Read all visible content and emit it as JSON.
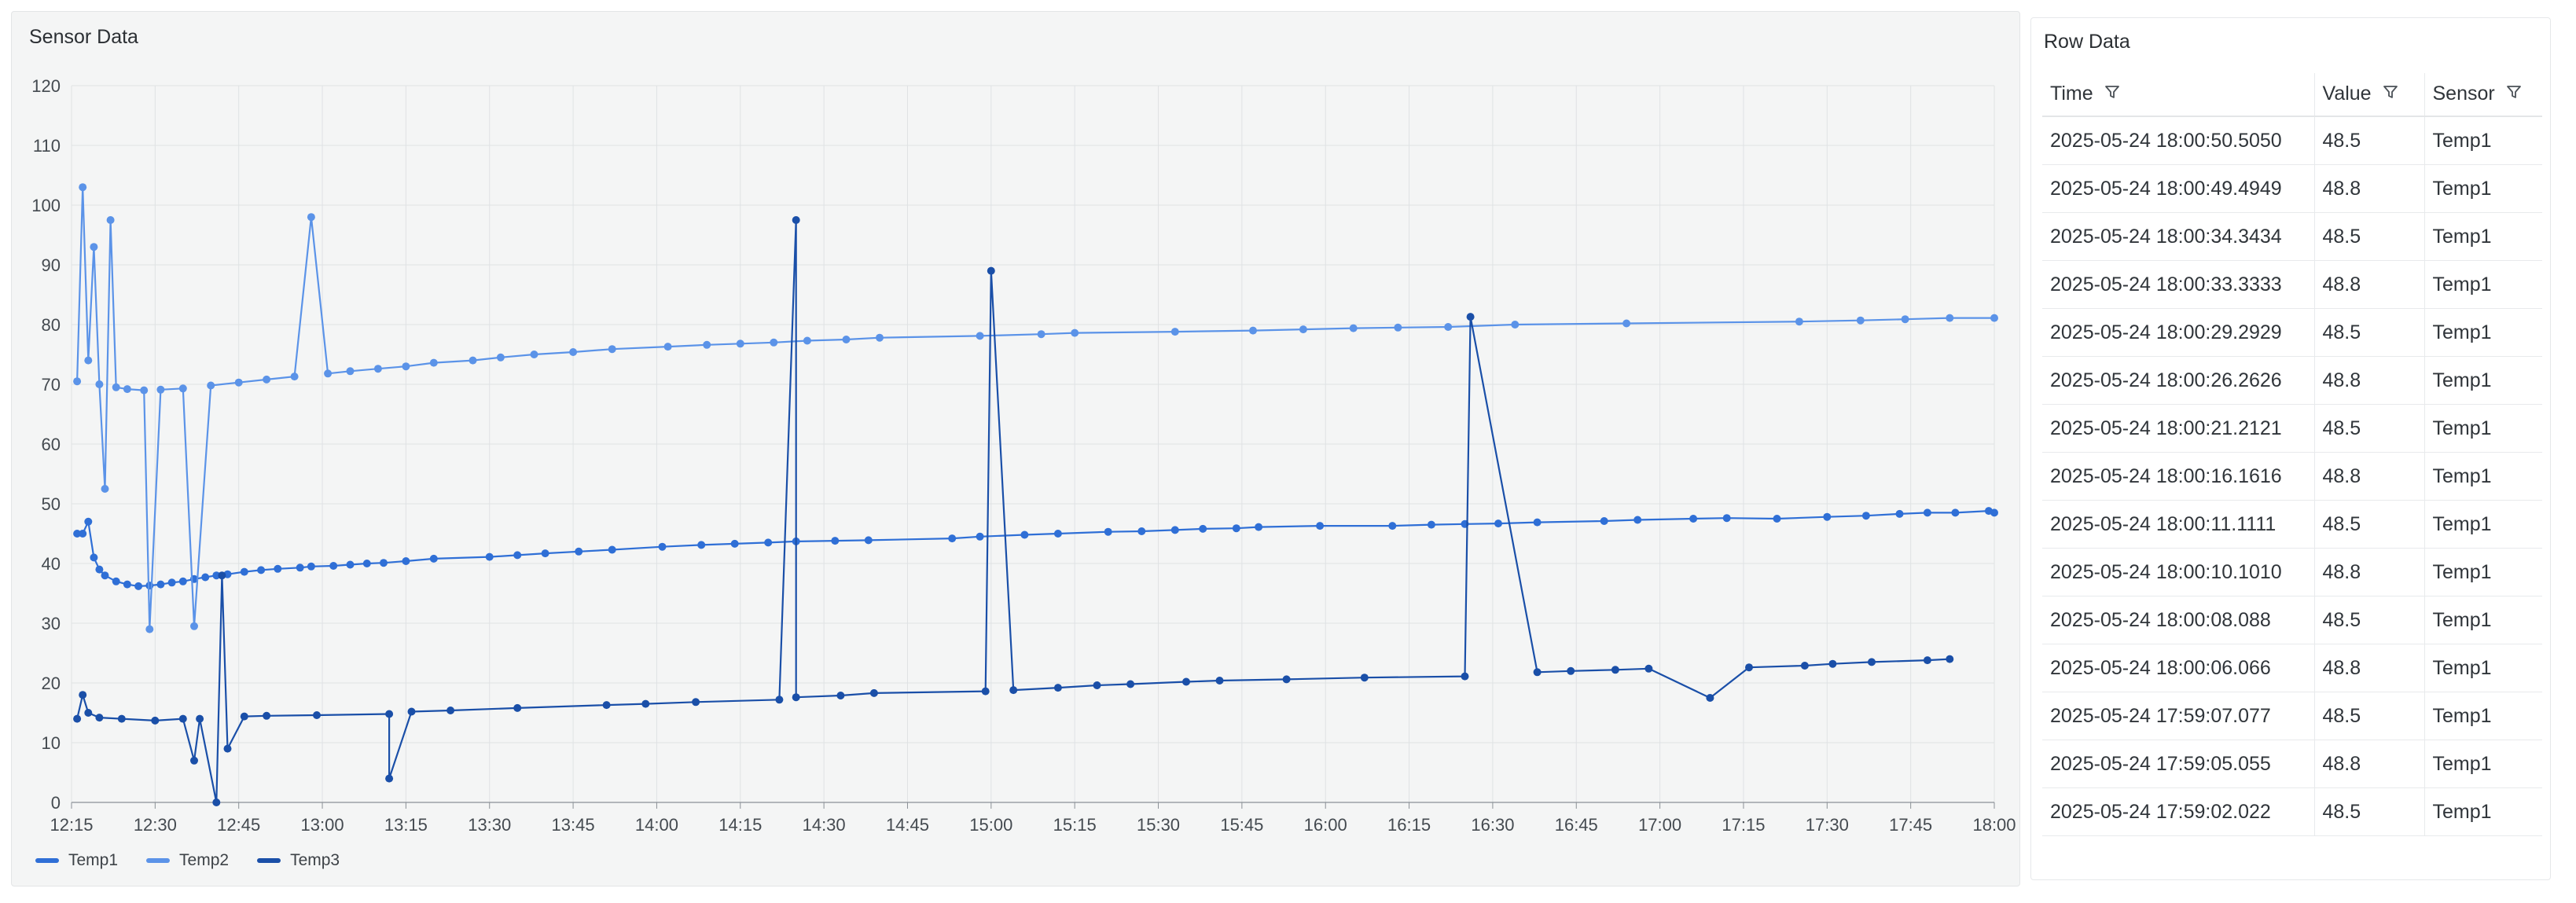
{
  "chart": {
    "title": "Sensor Data"
  },
  "table": {
    "title": "Row Data",
    "columns": [
      "Time",
      "Value",
      "Sensor"
    ],
    "rows": [
      [
        "2025-05-24 18:00:50.5050",
        "48.5",
        "Temp1"
      ],
      [
        "2025-05-24 18:00:49.4949",
        "48.8",
        "Temp1"
      ],
      [
        "2025-05-24 18:00:34.3434",
        "48.5",
        "Temp1"
      ],
      [
        "2025-05-24 18:00:33.3333",
        "48.8",
        "Temp1"
      ],
      [
        "2025-05-24 18:00:29.2929",
        "48.5",
        "Temp1"
      ],
      [
        "2025-05-24 18:00:26.2626",
        "48.8",
        "Temp1"
      ],
      [
        "2025-05-24 18:00:21.2121",
        "48.5",
        "Temp1"
      ],
      [
        "2025-05-24 18:00:16.1616",
        "48.8",
        "Temp1"
      ],
      [
        "2025-05-24 18:00:11.1111",
        "48.5",
        "Temp1"
      ],
      [
        "2025-05-24 18:00:10.1010",
        "48.8",
        "Temp1"
      ],
      [
        "2025-05-24 18:00:08.088",
        "48.5",
        "Temp1"
      ],
      [
        "2025-05-24 18:00:06.066",
        "48.8",
        "Temp1"
      ],
      [
        "2025-05-24 17:59:07.077",
        "48.5",
        "Temp1"
      ],
      [
        "2025-05-24 17:59:05.055",
        "48.8",
        "Temp1"
      ],
      [
        "2025-05-24 17:59:02.022",
        "48.5",
        "Temp1"
      ]
    ]
  },
  "icons": {
    "filter": "filter-icon"
  },
  "chart_data": {
    "type": "line",
    "title": "Sensor Data",
    "xlabel": "",
    "ylabel": "",
    "x_ticks": [
      "12:15",
      "12:30",
      "12:45",
      "13:00",
      "13:15",
      "13:30",
      "13:45",
      "14:00",
      "14:15",
      "14:30",
      "14:45",
      "15:00",
      "15:15",
      "15:30",
      "15:45",
      "16:00",
      "16:15",
      "16:30",
      "16:45",
      "17:00",
      "17:15",
      "17:30",
      "17:45",
      "18:00"
    ],
    "xlim": [
      "12:15",
      "18:00"
    ],
    "y_ticks": [
      0,
      10,
      20,
      30,
      40,
      50,
      60,
      70,
      80,
      90,
      100,
      110,
      120
    ],
    "ylim": [
      0,
      120
    ],
    "grid": true,
    "legend": "bottom-left",
    "series": [
      {
        "name": "Temp1",
        "color": "#2f6fd6",
        "points": [
          [
            "12:16",
            45
          ],
          [
            "12:17",
            45
          ],
          [
            "12:18",
            47
          ],
          [
            "12:19",
            41
          ],
          [
            "12:20",
            39
          ],
          [
            "12:21",
            38
          ],
          [
            "12:23",
            37
          ],
          [
            "12:25",
            36.5
          ],
          [
            "12:27",
            36.2
          ],
          [
            "12:29",
            36.3
          ],
          [
            "12:31",
            36.5
          ],
          [
            "12:33",
            36.8
          ],
          [
            "12:35",
            37
          ],
          [
            "12:37",
            37.4
          ],
          [
            "12:39",
            37.7
          ],
          [
            "12:41",
            38
          ],
          [
            "12:43",
            38.2
          ],
          [
            "12:46",
            38.6
          ],
          [
            "12:49",
            38.9
          ],
          [
            "12:52",
            39.1
          ],
          [
            "12:56",
            39.3
          ],
          [
            "12:58",
            39.5
          ],
          [
            "13:02",
            39.6
          ],
          [
            "13:05",
            39.8
          ],
          [
            "13:08",
            40
          ],
          [
            "13:11",
            40.1
          ],
          [
            "13:15",
            40.4
          ],
          [
            "13:20",
            40.8
          ],
          [
            "13:30",
            41.1
          ],
          [
            "13:35",
            41.4
          ],
          [
            "13:40",
            41.7
          ],
          [
            "13:46",
            42
          ],
          [
            "13:52",
            42.3
          ],
          [
            "14:01",
            42.8
          ],
          [
            "14:08",
            43.1
          ],
          [
            "14:14",
            43.3
          ],
          [
            "14:20",
            43.5
          ],
          [
            "14:25",
            43.7
          ],
          [
            "14:32",
            43.8
          ],
          [
            "14:38",
            43.9
          ],
          [
            "14:53",
            44.2
          ],
          [
            "14:58",
            44.5
          ],
          [
            "15:06",
            44.8
          ],
          [
            "15:12",
            45
          ],
          [
            "15:21",
            45.3
          ],
          [
            "15:27",
            45.4
          ],
          [
            "15:33",
            45.6
          ],
          [
            "15:38",
            45.8
          ],
          [
            "15:44",
            45.9
          ],
          [
            "15:48",
            46.1
          ],
          [
            "15:59",
            46.3
          ],
          [
            "16:12",
            46.3
          ],
          [
            "16:19",
            46.5
          ],
          [
            "16:25",
            46.6
          ],
          [
            "16:31",
            46.7
          ],
          [
            "16:38",
            46.9
          ],
          [
            "16:50",
            47.1
          ],
          [
            "16:56",
            47.3
          ],
          [
            "17:06",
            47.5
          ],
          [
            "17:12",
            47.6
          ],
          [
            "17:21",
            47.5
          ],
          [
            "17:30",
            47.8
          ],
          [
            "17:37",
            48
          ],
          [
            "17:43",
            48.3
          ],
          [
            "17:48",
            48.5
          ],
          [
            "17:53",
            48.5
          ],
          [
            "17:59",
            48.8
          ],
          [
            "18:00",
            48.5
          ]
        ]
      },
      {
        "name": "Temp2",
        "color": "#5b93e8",
        "points": [
          [
            "12:16",
            70.5
          ],
          [
            "12:17",
            103
          ],
          [
            "12:18",
            74
          ],
          [
            "12:19",
            93
          ],
          [
            "12:20",
            70
          ],
          [
            "12:21",
            52.5
          ],
          [
            "12:22",
            97.5
          ],
          [
            "12:23",
            69.5
          ],
          [
            "12:25",
            69.2
          ],
          [
            "12:28",
            69
          ],
          [
            "12:29",
            29
          ],
          [
            "12:31",
            69.1
          ],
          [
            "12:35",
            69.3
          ],
          [
            "12:37",
            29.5
          ],
          [
            "12:40",
            69.8
          ],
          [
            "12:45",
            70.3
          ],
          [
            "12:50",
            70.8
          ],
          [
            "12:55",
            71.3
          ],
          [
            "12:58",
            98
          ],
          [
            "13:01",
            71.8
          ],
          [
            "13:05",
            72.2
          ],
          [
            "13:10",
            72.6
          ],
          [
            "13:15",
            73
          ],
          [
            "13:20",
            73.6
          ],
          [
            "13:27",
            74
          ],
          [
            "13:32",
            74.5
          ],
          [
            "13:38",
            75
          ],
          [
            "13:45",
            75.4
          ],
          [
            "13:52",
            75.9
          ],
          [
            "14:02",
            76.3
          ],
          [
            "14:09",
            76.6
          ],
          [
            "14:15",
            76.8
          ],
          [
            "14:21",
            77
          ],
          [
            "14:27",
            77.3
          ],
          [
            "14:34",
            77.5
          ],
          [
            "14:40",
            77.8
          ],
          [
            "14:58",
            78.1
          ],
          [
            "15:09",
            78.4
          ],
          [
            "15:15",
            78.6
          ],
          [
            "15:33",
            78.8
          ],
          [
            "15:47",
            79
          ],
          [
            "15:56",
            79.2
          ],
          [
            "16:05",
            79.4
          ],
          [
            "16:13",
            79.5
          ],
          [
            "16:22",
            79.6
          ],
          [
            "16:34",
            80
          ],
          [
            "16:54",
            80.2
          ],
          [
            "17:25",
            80.5
          ],
          [
            "17:36",
            80.7
          ],
          [
            "17:44",
            80.9
          ],
          [
            "17:52",
            81.1
          ],
          [
            "18:00",
            81.1
          ]
        ]
      },
      {
        "name": "Temp3",
        "color": "#1a4fa8",
        "points": [
          [
            "12:16",
            14
          ],
          [
            "12:17",
            18
          ],
          [
            "12:18",
            15
          ],
          [
            "12:20",
            14.2
          ],
          [
            "12:24",
            14
          ],
          [
            "12:30",
            13.7
          ],
          [
            "12:35",
            14
          ],
          [
            "12:37",
            7
          ],
          [
            "12:38",
            14
          ],
          [
            "12:41",
            0
          ],
          [
            "12:42",
            38
          ],
          [
            "12:43",
            9
          ],
          [
            "12:46",
            14.4
          ],
          [
            "12:50",
            14.5
          ],
          [
            "12:59",
            14.6
          ],
          [
            "13:12",
            14.8
          ],
          [
            "13:12",
            4
          ],
          [
            "13:16",
            15.2
          ],
          [
            "13:23",
            15.4
          ],
          [
            "13:35",
            15.8
          ],
          [
            "13:51",
            16.3
          ],
          [
            "13:58",
            16.5
          ],
          [
            "14:07",
            16.8
          ],
          [
            "14:22",
            17.2
          ],
          [
            "14:25",
            97.5
          ],
          [
            "14:25",
            17.6
          ],
          [
            "14:33",
            17.9
          ],
          [
            "14:39",
            18.3
          ],
          [
            "14:59",
            18.6
          ],
          [
            "15:00",
            89
          ],
          [
            "15:04",
            18.8
          ],
          [
            "15:12",
            19.2
          ],
          [
            "15:19",
            19.6
          ],
          [
            "15:25",
            19.8
          ],
          [
            "15:35",
            20.2
          ],
          [
            "15:41",
            20.4
          ],
          [
            "15:53",
            20.6
          ],
          [
            "16:07",
            20.9
          ],
          [
            "16:25",
            21.1
          ],
          [
            "16:26",
            81.3
          ],
          [
            "16:38",
            21.8
          ],
          [
            "16:44",
            22
          ],
          [
            "16:52",
            22.2
          ],
          [
            "16:58",
            22.4
          ],
          [
            "17:09",
            17.5
          ],
          [
            "17:16",
            22.6
          ],
          [
            "17:26",
            22.9
          ],
          [
            "17:31",
            23.2
          ],
          [
            "17:38",
            23.5
          ],
          [
            "17:48",
            23.8
          ],
          [
            "17:52",
            24
          ]
        ]
      }
    ]
  }
}
